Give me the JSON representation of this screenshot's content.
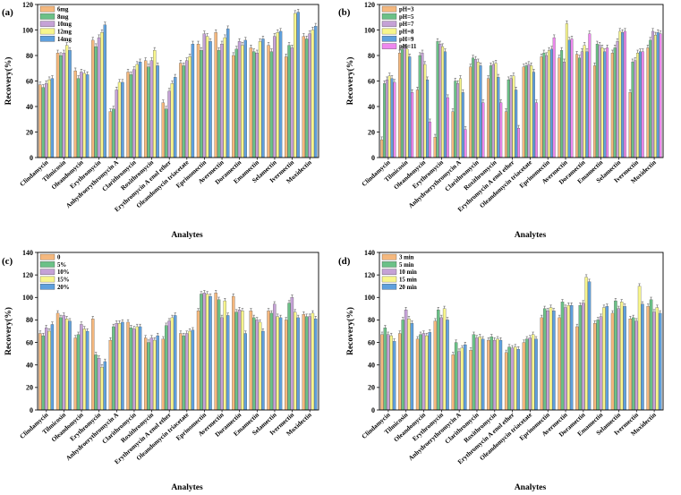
{
  "colors": {
    "c1": "#f5b87e",
    "c2": "#6bc187",
    "c3": "#c5a2d6",
    "c4": "#f7f58c",
    "c5": "#5fa0dd",
    "c6": "#ee88ee",
    "axis": "#000000",
    "error": "#666666"
  },
  "chart_data": [
    {
      "type": "bar",
      "panel_label": "(a)",
      "xlabel": "Analytes",
      "ylabel": "Recovery(%)",
      "ylim": [
        0,
        120
      ],
      "yticks": [
        "0",
        "20",
        "40",
        "60",
        "80",
        "100",
        "120"
      ],
      "legend_position": "top-left",
      "categories": [
        "Clindamycin",
        "Tilmicosin",
        "Oleandomycin",
        "Erythromycin",
        "Anhydroerythromycin A",
        "Clarithromycin",
        "Roxithromycin",
        "Erythromycin A enol ether",
        "Oleandomycin triacetate",
        "Eprinomectin",
        "Avermectin",
        "Doramectin",
        "Emamectin",
        "Selamectin",
        "Ivermectin",
        "Moxidectin"
      ],
      "series": [
        {
          "name": "6mg",
          "color_key": "c1",
          "values": [
            57,
            82,
            68,
            92,
            36,
            67,
            76,
            43,
            74,
            89,
            98,
            80,
            86,
            88,
            79,
            95
          ]
        },
        {
          "name": "8mg",
          "color_key": "c2",
          "values": [
            55,
            80,
            62,
            87,
            38,
            65,
            71,
            38,
            72,
            84,
            84,
            85,
            83,
            83,
            88,
            93
          ]
        },
        {
          "name": "10mg",
          "color_key": "c3",
          "values": [
            58,
            82,
            67,
            94,
            53,
            69,
            76,
            52,
            76,
            97,
            89,
            91,
            82,
            95,
            86,
            97
          ]
        },
        {
          "name": "12mg",
          "color_key": "c4",
          "values": [
            61,
            88,
            66,
            98,
            59,
            73,
            84,
            58,
            79,
            95,
            94,
            88,
            91,
            98,
            113,
            100
          ]
        },
        {
          "name": "14mg",
          "color_key": "c5",
          "values": [
            62,
            84,
            65,
            104,
            59,
            75,
            72,
            63,
            89,
            91,
            101,
            92,
            93,
            99,
            114,
            103
          ]
        }
      ]
    },
    {
      "type": "bar",
      "panel_label": "(b)",
      "xlabel": "Analytes",
      "ylabel": "Recovery(%)",
      "ylim": [
        0,
        120
      ],
      "yticks": [
        "0",
        "20",
        "40",
        "60",
        "80",
        "100",
        "120"
      ],
      "legend_position": "top-left",
      "categories": [
        "Clindamycin",
        "Tilmicosin",
        "Oleandomycin",
        "Erythromycin",
        "Anhydroerythromycin A",
        "Clarithromycin",
        "Roxithromycin",
        "Erythromycin A enol ether",
        "Oleandomycin triacetate",
        "Eprinomectin",
        "Avermectin",
        "Doramectin",
        "Emamectin",
        "Selamectin",
        "Ivermectin",
        "Moxidectin"
      ],
      "series": [
        {
          "name": "pH=3",
          "color_key": "c1",
          "values": [
            14,
            82,
            53,
            16,
            36,
            71,
            62,
            36,
            71,
            79,
            78,
            81,
            72,
            82,
            51,
            86
          ]
        },
        {
          "name": "pH=5",
          "color_key": "c2",
          "values": [
            58,
            85,
            80,
            91,
            60,
            78,
            72,
            61,
            72,
            82,
            84,
            78,
            89,
            86,
            75,
            92
          ]
        },
        {
          "name": "pH=7",
          "color_key": "c3",
          "values": [
            61,
            86,
            82,
            89,
            58,
            77,
            73,
            62,
            73,
            80,
            75,
            83,
            88,
            91,
            76,
            99
          ]
        },
        {
          "name": "pH=8",
          "color_key": "c4",
          "values": [
            64,
            85,
            73,
            87,
            62,
            75,
            74,
            64,
            72,
            84,
            105,
            88,
            86,
            99,
            82,
            96
          ]
        },
        {
          "name": "pH=9",
          "color_key": "c5",
          "values": [
            62,
            79,
            61,
            83,
            51,
            72,
            63,
            53,
            67,
            85,
            92,
            83,
            83,
            98,
            83,
            98
          ]
        },
        {
          "name": "pH=11",
          "color_key": "c6",
          "values": [
            59,
            51,
            28,
            47,
            22,
            43,
            43,
            23,
            43,
            94,
            93,
            97,
            86,
            99,
            83,
            97
          ]
        }
      ]
    },
    {
      "type": "bar",
      "panel_label": "(c)",
      "xlabel": "Analytes",
      "ylabel": "Recovery(%)",
      "ylim": [
        0,
        140
      ],
      "yticks": [
        "0",
        "20",
        "40",
        "60",
        "80",
        "100",
        "120",
        "140"
      ],
      "legend_position": "top-left",
      "categories": [
        "Clindamycin",
        "Tilmicosin",
        "Oleandomycin",
        "Erythromycin",
        "Anhydroerythromycin A",
        "Clarithromycin",
        "Roxithromycin",
        "Erythromycin A enol ether",
        "Oleandomycin triacetate",
        "Eprinomectin",
        "Avermectin",
        "Doramectin",
        "Emamectin",
        "Selamectin",
        "Ivermectin",
        "Moxidectin"
      ],
      "series": [
        {
          "name": "0",
          "color_key": "c1",
          "values": [
            68,
            86,
            64,
            81,
            62,
            78,
            64,
            63,
            68,
            88,
            104,
            101,
            88,
            88,
            80,
            85
          ]
        },
        {
          "name": "5%",
          "color_key": "c2",
          "values": [
            66,
            82,
            67,
            49,
            74,
            73,
            60,
            75,
            66,
            103,
            98,
            87,
            82,
            86,
            95,
            83
          ]
        },
        {
          "name": "10%",
          "color_key": "c3",
          "values": [
            73,
            84,
            76,
            46,
            77,
            72,
            64,
            79,
            68,
            104,
            82,
            89,
            80,
            94,
            100,
            83
          ]
        },
        {
          "name": "15%",
          "color_key": "c4",
          "values": [
            70,
            81,
            72,
            38,
            77,
            74,
            62,
            82,
            70,
            103,
            97,
            88,
            78,
            83,
            87,
            86
          ]
        },
        {
          "name": "20%",
          "color_key": "c5",
          "values": [
            76,
            79,
            70,
            43,
            78,
            74,
            66,
            84,
            71,
            101,
            84,
            68,
            70,
            82,
            82,
            81
          ]
        }
      ]
    },
    {
      "type": "bar",
      "panel_label": "(d)",
      "xlabel": "Analytes",
      "ylabel": "Recovery(%)",
      "ylim": [
        0,
        140
      ],
      "yticks": [
        "0",
        "20",
        "40",
        "60",
        "80",
        "100",
        "120",
        "140"
      ],
      "legend_position": "top-left",
      "categories": [
        "Clindamycin",
        "Tilmicosin",
        "Oleandomycin",
        "Erythromycin",
        "Anhydroerythromycin A",
        "Clarithromycin",
        "Roxithromycin",
        "Erythromycin A enol ether",
        "Oleandomycin triacetate",
        "Eprinomectin",
        "Avermectin",
        "Doramectin",
        "Emamectin",
        "Selamectin",
        "Ivermectin",
        "Moxidectin"
      ],
      "series": [
        {
          "name": "3 min",
          "color_key": "c1",
          "values": [
            67,
            68,
            63,
            79,
            49,
            53,
            62,
            51,
            60,
            82,
            82,
            74,
            77,
            86,
            81,
            92
          ]
        },
        {
          "name": "5 min",
          "color_key": "c2",
          "values": [
            73,
            80,
            67,
            89,
            60,
            67,
            65,
            56,
            63,
            90,
            96,
            93,
            80,
            97,
            82,
            98
          ]
        },
        {
          "name": "10 min",
          "color_key": "c3",
          "values": [
            67,
            89,
            68,
            82,
            52,
            64,
            62,
            55,
            64,
            88,
            91,
            95,
            83,
            90,
            79,
            87
          ]
        },
        {
          "name": "15 min",
          "color_key": "c4",
          "values": [
            66,
            81,
            66,
            90,
            55,
            65,
            63,
            56,
            67,
            91,
            93,
            118,
            91,
            96,
            110,
            91
          ]
        },
        {
          "name": "20 min",
          "color_key": "c5",
          "values": [
            61,
            77,
            69,
            80,
            58,
            63,
            62,
            54,
            63,
            88,
            93,
            114,
            92,
            92,
            94,
            86
          ]
        }
      ]
    }
  ]
}
